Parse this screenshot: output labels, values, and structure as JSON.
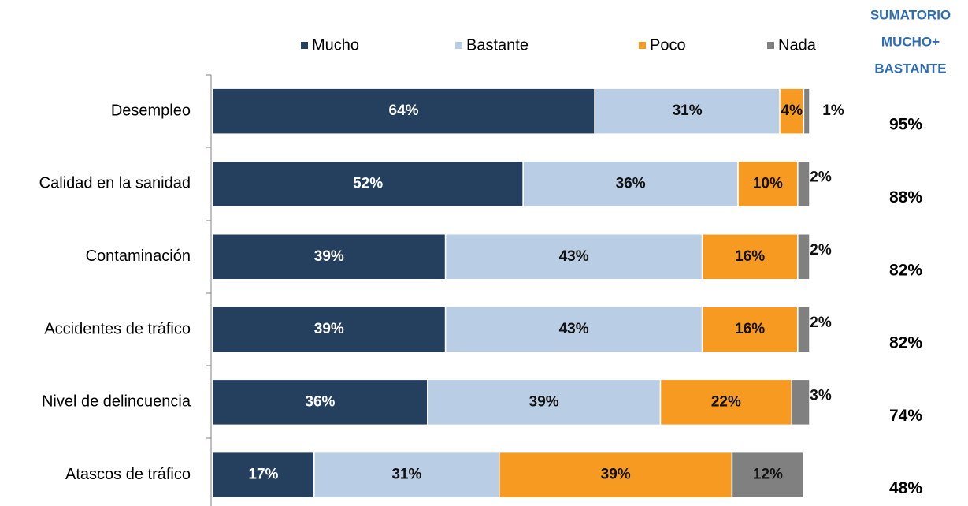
{
  "chart_data": {
    "type": "stacked-bar-horizontal",
    "categories": [
      "Desempleo",
      "Calidad en la sanidad",
      "Contaminación",
      "Accidentes de tráfico",
      "Nivel de delincuencia",
      "Atascos de tráfico"
    ],
    "series": [
      {
        "name": "Mucho",
        "color": "#253f5f",
        "values": [
          64,
          52,
          39,
          39,
          36,
          17
        ],
        "value_labels": [
          "64%",
          "52%",
          "39%",
          "39%",
          "36%",
          "17%"
        ]
      },
      {
        "name": "Bastante",
        "color": "#b9cde5",
        "values": [
          31,
          36,
          43,
          43,
          39,
          31
        ],
        "value_labels": [
          "31%",
          "36%",
          "43%",
          "43%",
          "39%",
          "31%"
        ]
      },
      {
        "name": "Poco",
        "color": "#f79a21",
        "values": [
          4,
          10,
          16,
          16,
          22,
          39
        ],
        "value_labels": [
          "4%",
          "10%",
          "16%",
          "16%",
          "22%",
          "39%"
        ]
      },
      {
        "name": "Nada",
        "color": "#808080",
        "values": [
          1,
          2,
          2,
          2,
          3,
          12
        ],
        "value_labels": [
          "1%",
          "2%",
          "2%",
          "2%",
          "3%",
          "12%"
        ]
      }
    ],
    "xlim": [
      0,
      100
    ],
    "sum_header": [
      "SUMATORIO",
      "MUCHO+",
      "BASTANTE"
    ],
    "sum_values": [
      95,
      88,
      82,
      82,
      74,
      48
    ],
    "sum_labels": [
      "95%",
      "88%",
      "82%",
      "82%",
      "74%",
      "48%"
    ],
    "legend": "top"
  }
}
